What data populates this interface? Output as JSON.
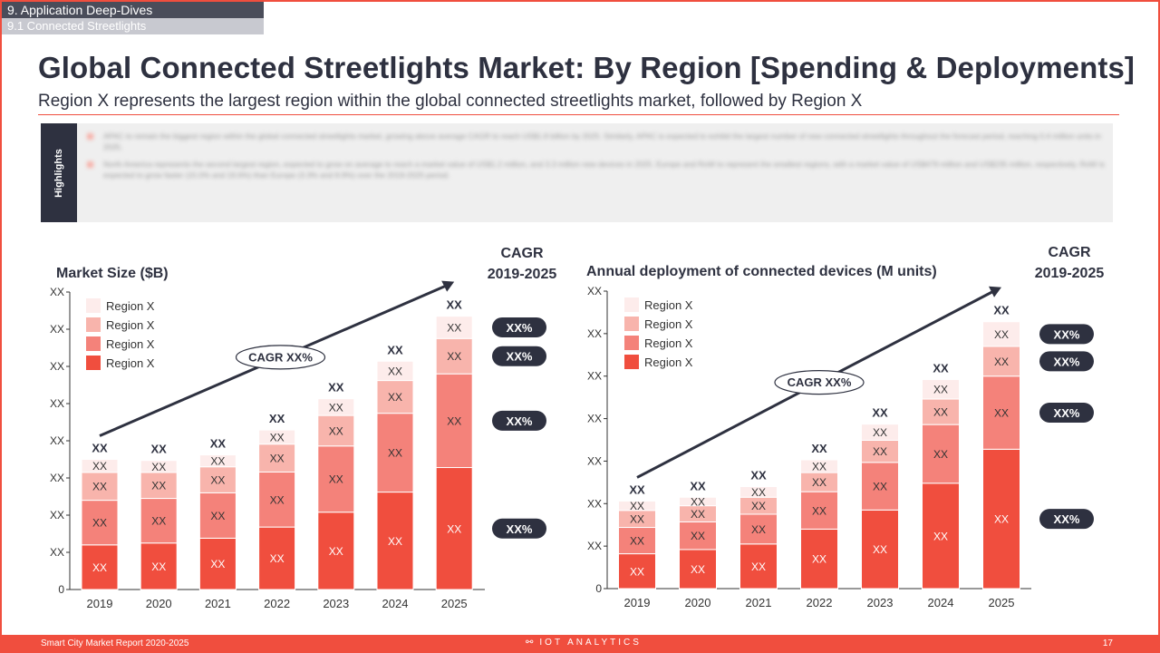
{
  "breadcrumb": {
    "section": "9. Application Deep-Dives",
    "subsection": "9.1 Connected Streetlights"
  },
  "title": "Global Connected Streetlights Market: By Region [Spending & Deployments]",
  "subtitle": "Region X represents the largest region within the global connected streetlights market, followed by Region X",
  "highlights": {
    "label": "Highlights",
    "bullets": [
      "APAC to remain the biggest region within the global connected streetlights market, growing above average CAGR to reach US$1.8 billion by 2025. Similarly, APAC is expected to exhibit the largest number of new connected streetlights throughout the forecast period, reaching 0.4 million units in 2025.",
      "North America represents the second largest region, expected to grow on average to reach a market value of US$1.2 million, and 3.3 million new devices in 2025. Europe and RoW to represent the smallest regions, with a market value of US$479 million and US$235 million, respectively. RoW is expected to grow faster (15.0% and 19.6%) than Europe (3.3% and 8.9%) over the 2019-2025 period."
    ]
  },
  "colors": {
    "region1": "#fdeceb",
    "region2": "#f8b4ac",
    "region3": "#f4827a",
    "region4": "#f04e3e",
    "dark": "#2e3140",
    "accent": "#f04e3e"
  },
  "footer": {
    "report": "Smart City Market Report 2020-2025",
    "logo": "IOT ANALYTICS",
    "page": "17"
  },
  "chart_data": [
    {
      "type": "bar",
      "stacked": true,
      "title": "Market Size ($B)",
      "cagr_header": [
        "CAGR",
        "2019-2025"
      ],
      "trend_label": "CAGR XX%",
      "categories": [
        "2019",
        "2020",
        "2021",
        "2022",
        "2023",
        "2024",
        "2025"
      ],
      "y_tick_labels": [
        "0",
        "XX",
        "XX",
        "XX",
        "XX",
        "XX",
        "XX",
        "XX",
        "XX"
      ],
      "ylim": [
        0,
        8
      ],
      "series": [
        {
          "name": "Region X",
          "values": [
            1.2,
            1.25,
            1.38,
            1.68,
            2.08,
            2.62,
            3.28
          ],
          "label": "XX"
        },
        {
          "name": "Region X",
          "values": [
            1.2,
            1.2,
            1.22,
            1.48,
            1.78,
            2.12,
            2.52
          ],
          "label": "XX"
        },
        {
          "name": "Region X",
          "values": [
            0.75,
            0.7,
            0.7,
            0.75,
            0.82,
            0.88,
            0.95
          ],
          "label": "XX"
        },
        {
          "name": "Region X",
          "values": [
            0.35,
            0.32,
            0.32,
            0.38,
            0.45,
            0.52,
            0.6
          ],
          "label": "XX"
        }
      ],
      "legend_order": [
        3,
        2,
        1,
        0
      ],
      "total_label": "XX",
      "cagr_values": [
        "XX%",
        "XX%",
        "XX%",
        "XX%"
      ]
    },
    {
      "type": "bar",
      "stacked": true,
      "title": "Annual deployment of connected devices (M units)",
      "cagr_header": [
        "CAGR",
        "2019-2025"
      ],
      "trend_label": "CAGR XX%",
      "categories": [
        "2019",
        "2020",
        "2021",
        "2022",
        "2023",
        "2024",
        "2025"
      ],
      "y_tick_labels": [
        "0",
        "XX",
        "XX",
        "XX",
        "XX",
        "XX",
        "XX",
        "XX"
      ],
      "ylim": [
        0,
        7
      ],
      "series": [
        {
          "name": "Region X",
          "values": [
            0.82,
            0.92,
            1.05,
            1.4,
            1.85,
            2.48,
            3.28
          ],
          "label": "XX"
        },
        {
          "name": "Region X",
          "values": [
            0.62,
            0.65,
            0.7,
            0.88,
            1.12,
            1.38,
            1.72
          ],
          "label": "XX"
        },
        {
          "name": "Region X",
          "values": [
            0.4,
            0.38,
            0.4,
            0.45,
            0.52,
            0.6,
            0.7
          ],
          "label": "XX"
        },
        {
          "name": "Region X",
          "values": [
            0.22,
            0.2,
            0.25,
            0.3,
            0.38,
            0.46,
            0.58
          ],
          "label": "XX"
        }
      ],
      "legend_order": [
        3,
        2,
        1,
        0
      ],
      "total_label": "XX",
      "cagr_values": [
        "XX%",
        "XX%",
        "XX%",
        "XX%"
      ]
    }
  ]
}
